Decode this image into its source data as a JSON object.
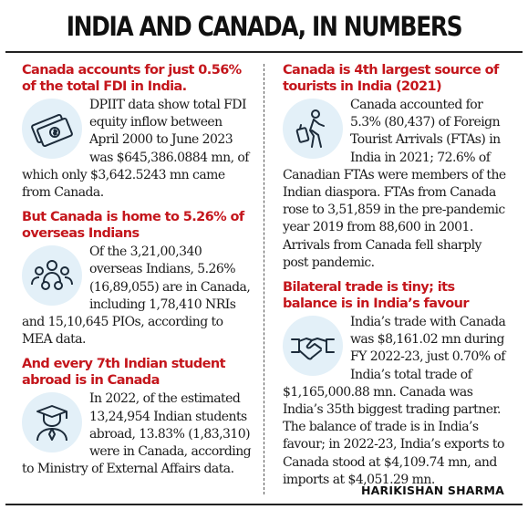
{
  "title": "INDIA AND CANADA, IN NUMBERS",
  "left": [
    {
      "heading": "Canada accounts for just 0.56% of the total FDI in India.",
      "icon": "money-icon",
      "body": "DPIIT data show total FDI equity inflow between April 2000 to June 2023 was $645,386.0884 mn, of which only $3,642.5243 mn came from Canada."
    },
    {
      "heading": "But Canada is home to 5.26% of overseas Indians",
      "icon": "people-group-icon",
      "body": "Of the 3,21,00,340 overseas Indians, 5.26% (16,89,055) are in Canada, including 1,78,410 NRIs and 15,10,645 PIOs, according to MEA data."
    },
    {
      "heading": "And every 7th Indian student abroad is in Canada",
      "icon": "graduate-icon",
      "body": "In 2022, of the estimated 13,24,954 Indian students abroad, 13.83% (1,83,310) were in Canada, according to Ministry of External Affairs data."
    }
  ],
  "right": [
    {
      "heading": "Canada is 4th largest source of tourists in India (2021)",
      "icon": "traveler-icon",
      "body": "Canada accounted for 5.3% (80,437) of Foreign Tourist Arrivals (FTAs) in India in 2021; 72.6% of Canadian FTAs were members of the Indian diaspora. FTAs from Canada rose to 3,51,859 in the pre-pandemic year 2019 from 88,600 in 2001. Arrivals from Canada fell sharply post pandemic."
    },
    {
      "heading": "Bilateral trade is tiny; its balance is in India’s favour",
      "icon": "handshake-icon",
      "body": "India’s trade with Canada was $8,161.02 mn during FY 2022-23, just 0.70% of India’s total trade of $1,165,000.88 mn. Canada was India’s 35th biggest trading partner. The balance of trade is in India’s favour; in 2022-23, India’s exports to Canada stood at $4,109.74 mn, and imports at $4,051.29 mn."
    }
  ],
  "byline": "HARIKISHAN SHARMA",
  "colors": {
    "heading": "#c4161c",
    "icon_bg": "#e3f0f8",
    "icon_stroke": "#1c2b3a"
  }
}
